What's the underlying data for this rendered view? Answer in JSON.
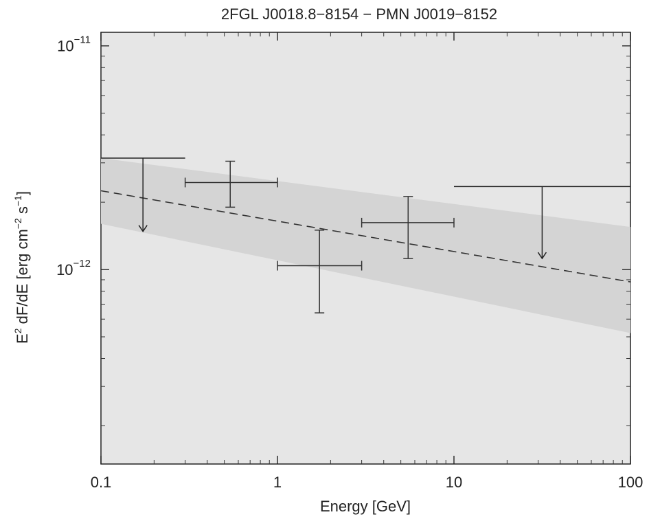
{
  "chart_data": {
    "type": "scatter",
    "title": "2FGL J0018.8−8154 − PMN J0019−8152",
    "xlabel": "Energy [GeV]",
    "ylabel": "E2 dF/dE [erg cm−2 s−1]",
    "xscale": "log",
    "yscale": "log",
    "xlim": [
      0.1,
      100
    ],
    "ylim": [
      1.35e-13,
      1.15e-11
    ],
    "x_ticks": [
      {
        "value": 0.1,
        "label": "0.1"
      },
      {
        "value": 1,
        "label": "1"
      },
      {
        "value": 10,
        "label": "10"
      },
      {
        "value": 100,
        "label": "100"
      }
    ],
    "y_ticks": [
      {
        "value": 1e-12,
        "base": "10",
        "exp": "−12"
      },
      {
        "value": 1e-11,
        "base": "10",
        "exp": "−11"
      }
    ],
    "grid": false,
    "background": "#e6e6e6",
    "band_color": "#d4d4d4",
    "uncertainty_band": {
      "x": [
        0.1,
        100
      ],
      "upper": [
        3.15e-12,
        1.55e-12
      ],
      "lower": [
        1.6e-12,
        5.2e-13
      ]
    },
    "model_line": {
      "style": "dashed",
      "x": [
        0.1,
        100
      ],
      "y": [
        2.25e-12,
        8.8e-13
      ]
    },
    "data_points": [
      {
        "x": 0.54,
        "x_lo": 0.3,
        "x_hi": 1.0,
        "y": 2.45e-12,
        "y_lo": 1.9e-12,
        "y_hi": 3.05e-12
      },
      {
        "x": 1.73,
        "x_lo": 1.0,
        "x_hi": 3.0,
        "y": 1.04e-12,
        "y_lo": 6.4e-13,
        "y_hi": 1.5e-12
      },
      {
        "x": 5.5,
        "x_lo": 3.0,
        "x_hi": 10.0,
        "y": 1.62e-12,
        "y_lo": 1.12e-12,
        "y_hi": 2.12e-12
      }
    ],
    "upper_limits": [
      {
        "x": 0.173,
        "x_lo": 0.1,
        "x_hi": 0.3,
        "y": 3.15e-12,
        "arrow_to": 1.48e-12
      },
      {
        "x": 31.6,
        "x_lo": 10.0,
        "x_hi": 100.0,
        "y": 2.35e-12,
        "arrow_to": 1.12e-12
      }
    ]
  }
}
